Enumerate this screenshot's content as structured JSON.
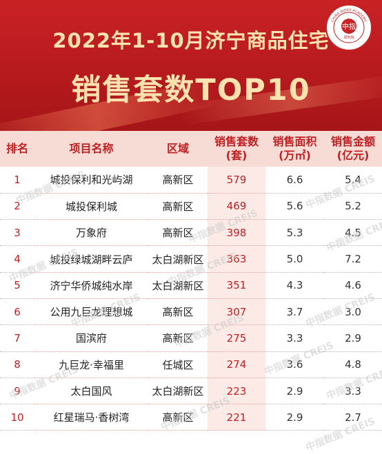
{
  "header": {
    "title_line1": "2022年1-10月济宁商品住宅",
    "title_line2": "销售套数TOP10",
    "logo_text": "中指",
    "logo_ring_text": "CHINA INDEX ACADEMY",
    "logo_sub": "研究院"
  },
  "table": {
    "headers": {
      "rank": "排名",
      "name": "项目名称",
      "area": "区域",
      "units_line1": "销售套数",
      "units_line2": "(套)",
      "sqm_line1": "销售面积",
      "sqm_line2": "(万㎡)",
      "amount_line1": "销售金额",
      "amount_line2": "(亿元)"
    },
    "rows": [
      {
        "rank": "1",
        "name": "城投保利和光屿湖",
        "area": "高新区",
        "units": "579",
        "sqm": "6.6",
        "amount": "5.4"
      },
      {
        "rank": "2",
        "name": "城投保利城",
        "area": "高新区",
        "units": "469",
        "sqm": "5.6",
        "amount": "5.2"
      },
      {
        "rank": "3",
        "name": "万象府",
        "area": "高新区",
        "units": "398",
        "sqm": "5.3",
        "amount": "4.5"
      },
      {
        "rank": "4",
        "name": "城投绿城湖畔云庐",
        "area": "太白湖新区",
        "units": "363",
        "sqm": "5.0",
        "amount": "7.2"
      },
      {
        "rank": "5",
        "name": "济宁华侨城纯水岸",
        "area": "太白湖新区",
        "units": "351",
        "sqm": "4.3",
        "amount": "4.6"
      },
      {
        "rank": "6",
        "name": "公用九巨龙理想城",
        "area": "高新区",
        "units": "307",
        "sqm": "3.7",
        "amount": "3.0"
      },
      {
        "rank": "7",
        "name": "国滨府",
        "area": "高新区",
        "units": "275",
        "sqm": "3.3",
        "amount": "2.9"
      },
      {
        "rank": "8",
        "name": "九巨龙·幸福里",
        "area": "任城区",
        "units": "274",
        "sqm": "3.6",
        "amount": "4.8"
      },
      {
        "rank": "9",
        "name": "太白国风",
        "area": "太白湖新区",
        "units": "223",
        "sqm": "2.9",
        "amount": "3.3"
      },
      {
        "rank": "10",
        "name": "红星瑞马·香树湾",
        "area": "高新区",
        "units": "221",
        "sqm": "2.9",
        "amount": "2.7"
      }
    ]
  },
  "watermark": {
    "text": "中指数据 CREIS"
  }
}
